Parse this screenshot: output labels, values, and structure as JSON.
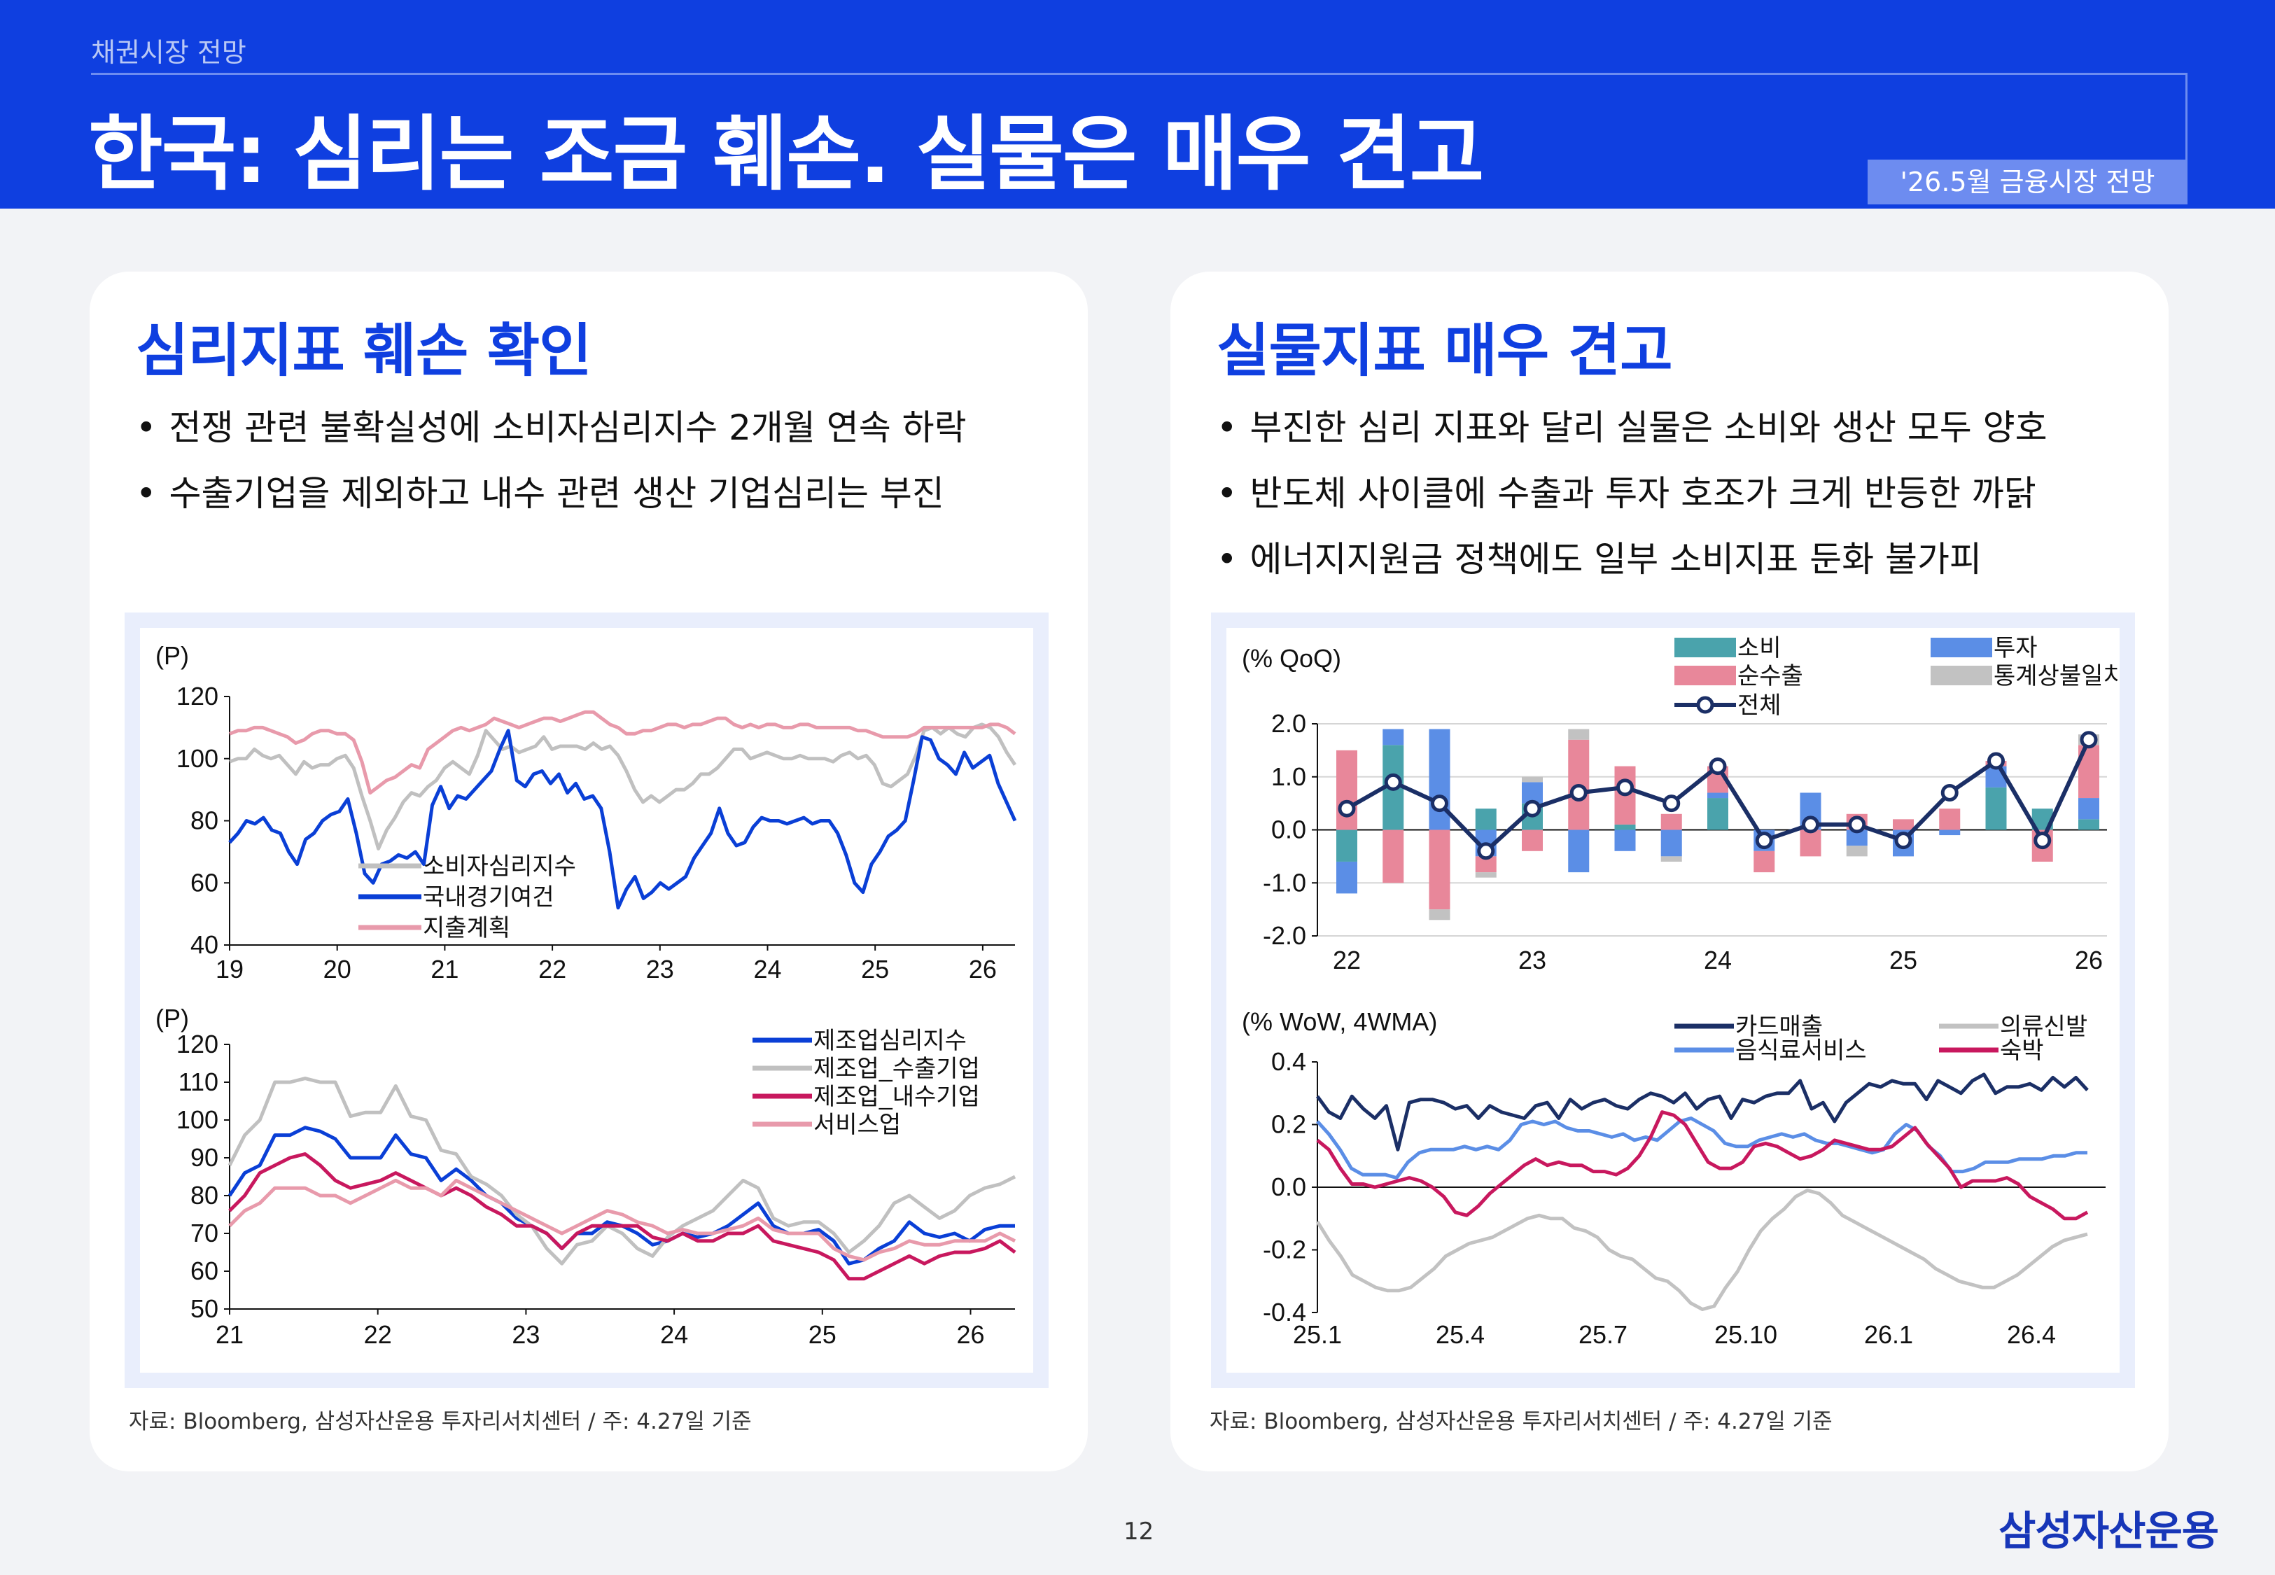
{
  "header": {
    "kicker": "채권시장 전망",
    "title": "한국: 심리는 조금 훼손. 실물은 매우 견고",
    "badge": "'26.5월 금융시장 전망"
  },
  "left_panel": {
    "heading": "심리지표 훼손 확인",
    "bullets": [
      "전쟁 관련 불확실성에 소비자심리지수 2개월 연속 하락",
      "수출기업을 제외하고 내수 관련 생산 기업심리는 부진"
    ],
    "source": "자료: Bloomberg, 삼성자산운용 투자리서치센터 / 주: 4.27일 기준"
  },
  "right_panel": {
    "heading": "실물지표 매우 견고",
    "bullets": [
      "부진한 심리 지표와 달리 실물은 소비와 생산 모두 양호",
      "반도체 사이클에 수출과 투자 호조가 크게 반등한 까닭",
      "에너지지원금 정책에도 일부 소비지표 둔화 불가피"
    ],
    "source": "자료: Bloomberg, 삼성자산운용 투자리서치센터 / 주: 4.27일 기준"
  },
  "colors": {
    "brand_blue": "#0f3fe0",
    "consumer_gray": "#c0c0c0",
    "domestic_blue": "#0a3fd6",
    "spending_pink": "#e89aab",
    "mfg_blue": "#0a3fd6",
    "export_gray": "#c0c0c0",
    "domestic_crimson": "#c8185e",
    "service_pink": "#e89aab",
    "consumption_teal": "#4aa3ac",
    "net_export_pink": "#e8879a",
    "investment_blue": "#5b8ee6",
    "discrepancy_gray": "#c2c2c2",
    "total_navy": "#1b2f66",
    "card_navy": "#1b2f66",
    "food_blue": "#5b8ee6",
    "clothing_gray": "#c2c2c2",
    "lodging_crimson": "#c8185e"
  },
  "footer": {
    "page": "12",
    "logo": "삼성자산운용"
  },
  "chart_data": [
    {
      "id": "consumer_sentiment",
      "type": "line",
      "unit": "(P)",
      "xlabels": [
        "19",
        "20",
        "21",
        "22",
        "23",
        "24",
        "25",
        "26"
      ],
      "x_start": 2019.0,
      "x_end": 2026.3,
      "ylim": [
        40,
        120
      ],
      "yticks": [
        40,
        60,
        80,
        100,
        120
      ],
      "series": [
        {
          "name": "소비자심리지수",
          "color": "#c0c0c0",
          "values": [
            99,
            100,
            100,
            103,
            101,
            100,
            101,
            98,
            95,
            99,
            97,
            98,
            98,
            100,
            101,
            97,
            88,
            80,
            71,
            77,
            81,
            86,
            89,
            88,
            91,
            93,
            97,
            99,
            97,
            95,
            101,
            109,
            106,
            103,
            104,
            102,
            103,
            104,
            107,
            103,
            104,
            104,
            104,
            103,
            105,
            103,
            104,
            101,
            96,
            90,
            86,
            88,
            86,
            88,
            90,
            90,
            92,
            95,
            95,
            97,
            100,
            103,
            103,
            100,
            101,
            102,
            101,
            100,
            100,
            101,
            100,
            100,
            100,
            99,
            101,
            102,
            100,
            101,
            98,
            92,
            91,
            93,
            95,
            101,
            109,
            110,
            108,
            110,
            108,
            107,
            110,
            111,
            110,
            107,
            102,
            98
          ]
        },
        {
          "name": "국내경기여건",
          "color": "#0a3fd6",
          "values": [
            73,
            76,
            80,
            79,
            81,
            77,
            76,
            70,
            66,
            74,
            76,
            80,
            82,
            83,
            87,
            76,
            63,
            60,
            66,
            67,
            69,
            68,
            70,
            66,
            85,
            91,
            84,
            88,
            87,
            90,
            93,
            96,
            103,
            109,
            93,
            91,
            95,
            96,
            92,
            95,
            89,
            92,
            87,
            88,
            84,
            70,
            52,
            58,
            62,
            55,
            57,
            60,
            58,
            60,
            62,
            68,
            72,
            76,
            84,
            76,
            72,
            73,
            78,
            81,
            80,
            80,
            79,
            80,
            81,
            79,
            80,
            80,
            76,
            69,
            60,
            57,
            66,
            70,
            75,
            77,
            80,
            93,
            107,
            106,
            100,
            98,
            95,
            102,
            97,
            99,
            101,
            92,
            86,
            80
          ]
        },
        {
          "name": "지출계획",
          "color": "#e89aab",
          "values": [
            108,
            109,
            109,
            110,
            110,
            109,
            108,
            107,
            105,
            106,
            108,
            109,
            109,
            108,
            108,
            106,
            99,
            89,
            91,
            93,
            94,
            96,
            98,
            97,
            103,
            105,
            107,
            109,
            110,
            109,
            110,
            111,
            113,
            112,
            111,
            110,
            111,
            112,
            113,
            113,
            112,
            113,
            114,
            115,
            115,
            113,
            111,
            110,
            108,
            108,
            109,
            109,
            110,
            111,
            111,
            110,
            111,
            111,
            112,
            113,
            113,
            111,
            110,
            111,
            110,
            111,
            111,
            110,
            110,
            111,
            111,
            110,
            110,
            110,
            110,
            110,
            109,
            109,
            108,
            107,
            107,
            107,
            107,
            108,
            110,
            110,
            110,
            110,
            110,
            110,
            110,
            110,
            111,
            111,
            110,
            108
          ]
        }
      ]
    },
    {
      "id": "business_sentiment",
      "type": "line",
      "unit": "(P)",
      "xlabels": [
        "21",
        "22",
        "23",
        "24",
        "25",
        "26"
      ],
      "x_start": 2021.0,
      "x_end": 2026.3,
      "ylim": [
        50,
        120
      ],
      "yticks": [
        50,
        60,
        70,
        80,
        90,
        100,
        110,
        120
      ],
      "series": [
        {
          "name": "제조업심리지수",
          "color": "#0a3fd6",
          "values": [
            80,
            86,
            88,
            96,
            96,
            98,
            97,
            95,
            90,
            90,
            90,
            96,
            91,
            90,
            84,
            87,
            84,
            80,
            78,
            74,
            72,
            70,
            66,
            70,
            70,
            73,
            72,
            70,
            67,
            68,
            70,
            69,
            70,
            72,
            75,
            78,
            72,
            70,
            70,
            71,
            68,
            62,
            63,
            66,
            68,
            73,
            70,
            69,
            70,
            68,
            71,
            72,
            72
          ]
        },
        {
          "name": "제조업_수출기업",
          "color": "#c0c0c0",
          "values": [
            88,
            96,
            100,
            110,
            110,
            111,
            110,
            110,
            101,
            102,
            102,
            109,
            101,
            100,
            92,
            91,
            85,
            83,
            80,
            75,
            72,
            66,
            62,
            67,
            68,
            72,
            70,
            66,
            64,
            69,
            72,
            74,
            76,
            80,
            84,
            82,
            74,
            72,
            73,
            73,
            70,
            65,
            68,
            72,
            78,
            80,
            77,
            74,
            76,
            80,
            82,
            83,
            85
          ]
        },
        {
          "name": "제조업_내수기업",
          "color": "#c8185e",
          "values": [
            76,
            80,
            86,
            88,
            90,
            91,
            88,
            84,
            82,
            83,
            84,
            86,
            84,
            82,
            80,
            82,
            80,
            77,
            75,
            72,
            72,
            70,
            66,
            70,
            72,
            72,
            72,
            72,
            69,
            68,
            70,
            68,
            68,
            70,
            70,
            72,
            68,
            67,
            66,
            65,
            63,
            58,
            58,
            60,
            62,
            64,
            62,
            64,
            65,
            65,
            66,
            68,
            65
          ]
        },
        {
          "name": "서비스업",
          "color": "#e89aab",
          "values": [
            72,
            76,
            78,
            82,
            82,
            82,
            80,
            80,
            78,
            80,
            82,
            84,
            82,
            82,
            80,
            84,
            82,
            80,
            78,
            76,
            74,
            72,
            70,
            72,
            74,
            76,
            75,
            73,
            72,
            70,
            71,
            70,
            70,
            71,
            72,
            74,
            71,
            70,
            70,
            70,
            66,
            64,
            63,
            65,
            66,
            68,
            67,
            67,
            68,
            68,
            68,
            70,
            68
          ]
        }
      ]
    },
    {
      "id": "gdp_contribution",
      "type": "bar",
      "unit": "(% QoQ)",
      "xlabels": [
        "22",
        "23",
        "24",
        "25",
        "26"
      ],
      "categories": [
        "22Q1",
        "22Q2",
        "22Q3",
        "22Q4",
        "23Q1",
        "23Q2",
        "23Q3",
        "23Q4",
        "24Q1",
        "24Q2",
        "24Q3",
        "24Q4",
        "25Q1",
        "25Q2",
        "25Q3",
        "25Q4",
        "26Q1"
      ],
      "ylim": [
        -2.0,
        2.0
      ],
      "yticks": [
        -2.0,
        -1.0,
        0.0,
        1.0,
        2.0
      ],
      "series": [
        {
          "name": "소비",
          "color": "#4aa3ac",
          "values": [
            -0.6,
            1.6,
            0.0,
            0.4,
            0.5,
            0.0,
            0.1,
            0.0,
            0.6,
            0.0,
            0.0,
            0.0,
            0.0,
            0.0,
            0.8,
            0.4,
            0.2
          ]
        },
        {
          "name": "투자",
          "color": "#5b8ee6",
          "values": [
            -0.6,
            0.3,
            1.9,
            -0.5,
            0.4,
            -0.8,
            -0.4,
            -0.5,
            0.1,
            -0.4,
            0.7,
            -0.3,
            -0.5,
            -0.1,
            0.4,
            0.0,
            0.4
          ]
        },
        {
          "name": "순수출",
          "color": "#e8879a",
          "values": [
            1.5,
            -1.0,
            -1.5,
            -0.3,
            -0.4,
            1.7,
            1.1,
            0.3,
            0.5,
            -0.4,
            -0.5,
            0.3,
            0.2,
            0.4,
            0.1,
            -0.6,
            1.0
          ]
        },
        {
          "name": "통계상불일치",
          "color": "#c2c2c2",
          "values": [
            0.0,
            0.0,
            -0.2,
            -0.1,
            0.1,
            0.2,
            0.0,
            -0.1,
            0.0,
            0.0,
            0.0,
            -0.2,
            0.0,
            0.0,
            0.0,
            0.0,
            0.2
          ]
        },
        {
          "name": "전체",
          "color": "#1b2f66",
          "line": true,
          "values": [
            0.4,
            0.9,
            0.5,
            -0.4,
            0.4,
            0.7,
            0.8,
            0.5,
            1.2,
            -0.2,
            0.1,
            0.1,
            -0.2,
            0.7,
            1.3,
            -0.2,
            1.7
          ]
        }
      ]
    },
    {
      "id": "card_spending",
      "type": "line",
      "unit": "(% WoW, 4WMA)",
      "xlabels": [
        "25.1",
        "25.4",
        "25.7",
        "25.10",
        "26.1",
        "26.4"
      ],
      "ylim": [
        -0.4,
        0.4
      ],
      "yticks": [
        -0.4,
        -0.2,
        0.0,
        0.2,
        0.4
      ],
      "series": [
        {
          "name": "카드매출",
          "color": "#1b2f66",
          "values": [
            0.29,
            0.24,
            0.22,
            0.29,
            0.25,
            0.22,
            0.26,
            0.12,
            0.27,
            0.28,
            0.28,
            0.27,
            0.25,
            0.26,
            0.22,
            0.26,
            0.24,
            0.23,
            0.22,
            0.26,
            0.27,
            0.22,
            0.28,
            0.25,
            0.27,
            0.28,
            0.26,
            0.25,
            0.28,
            0.3,
            0.29,
            0.27,
            0.3,
            0.25,
            0.28,
            0.29,
            0.22,
            0.28,
            0.27,
            0.29,
            0.3,
            0.3,
            0.34,
            0.25,
            0.27,
            0.21,
            0.27,
            0.3,
            0.33,
            0.32,
            0.34,
            0.33,
            0.33,
            0.28,
            0.34,
            0.32,
            0.3,
            0.34,
            0.36,
            0.3,
            0.32,
            0.32,
            0.33,
            0.31,
            0.35,
            0.32,
            0.35,
            0.31
          ]
        },
        {
          "name": "음식료서비스",
          "color": "#5b8ee6",
          "values": [
            0.21,
            0.17,
            0.12,
            0.06,
            0.04,
            0.04,
            0.04,
            0.03,
            0.08,
            0.11,
            0.12,
            0.12,
            0.12,
            0.13,
            0.12,
            0.13,
            0.12,
            0.15,
            0.2,
            0.21,
            0.2,
            0.21,
            0.19,
            0.18,
            0.18,
            0.17,
            0.16,
            0.17,
            0.15,
            0.16,
            0.15,
            0.18,
            0.21,
            0.22,
            0.2,
            0.18,
            0.14,
            0.13,
            0.13,
            0.15,
            0.16,
            0.17,
            0.16,
            0.17,
            0.15,
            0.14,
            0.14,
            0.13,
            0.12,
            0.11,
            0.12,
            0.17,
            0.2,
            0.18,
            0.13,
            0.1,
            0.05,
            0.05,
            0.06,
            0.08,
            0.08,
            0.08,
            0.09,
            0.09,
            0.09,
            0.1,
            0.1,
            0.11,
            0.11
          ]
        },
        {
          "name": "의류신발",
          "color": "#c2c2c2",
          "values": [
            -0.11,
            -0.17,
            -0.22,
            -0.28,
            -0.3,
            -0.32,
            -0.33,
            -0.33,
            -0.32,
            -0.29,
            -0.26,
            -0.22,
            -0.2,
            -0.18,
            -0.17,
            -0.16,
            -0.14,
            -0.12,
            -0.1,
            -0.09,
            -0.1,
            -0.1,
            -0.13,
            -0.14,
            -0.16,
            -0.2,
            -0.22,
            -0.23,
            -0.26,
            -0.29,
            -0.3,
            -0.33,
            -0.37,
            -0.39,
            -0.38,
            -0.32,
            -0.27,
            -0.2,
            -0.14,
            -0.1,
            -0.07,
            -0.03,
            -0.01,
            -0.02,
            -0.05,
            -0.09,
            -0.11,
            -0.13,
            -0.15,
            -0.17,
            -0.19,
            -0.21,
            -0.23,
            -0.26,
            -0.28,
            -0.3,
            -0.31,
            -0.32,
            -0.32,
            -0.3,
            -0.28,
            -0.25,
            -0.22,
            -0.19,
            -0.17,
            -0.16,
            -0.15
          ]
        },
        {
          "name": "숙박",
          "color": "#c8185e",
          "values": [
            0.15,
            0.12,
            0.06,
            0.01,
            0.01,
            0.0,
            0.01,
            0.02,
            0.03,
            0.02,
            0.0,
            -0.03,
            -0.08,
            -0.09,
            -0.06,
            -0.02,
            0.01,
            0.04,
            0.07,
            0.09,
            0.07,
            0.08,
            0.07,
            0.07,
            0.05,
            0.05,
            0.04,
            0.06,
            0.1,
            0.16,
            0.24,
            0.23,
            0.2,
            0.14,
            0.08,
            0.06,
            0.06,
            0.08,
            0.13,
            0.14,
            0.13,
            0.11,
            0.09,
            0.1,
            0.12,
            0.15,
            0.14,
            0.13,
            0.12,
            0.12,
            0.13,
            0.16,
            0.19,
            0.14,
            0.1,
            0.06,
            0.0,
            0.02,
            0.02,
            0.02,
            0.03,
            0.01,
            -0.03,
            -0.05,
            -0.07,
            -0.1,
            -0.1,
            -0.08
          ]
        }
      ]
    }
  ]
}
